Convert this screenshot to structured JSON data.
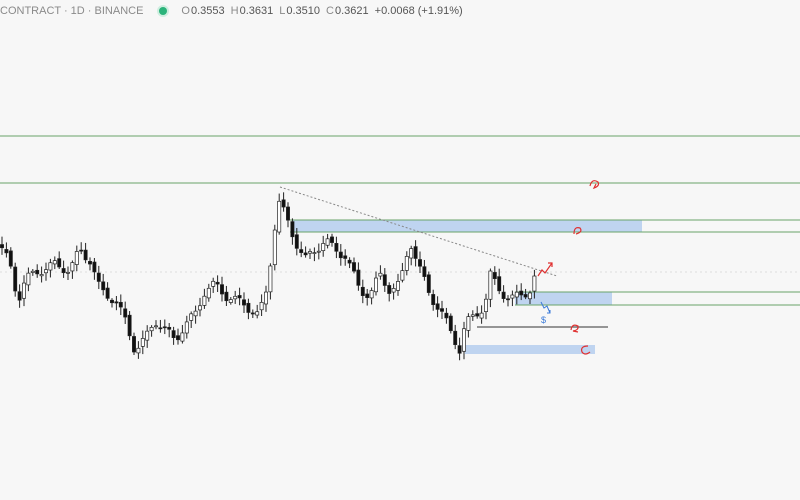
{
  "header": {
    "symbol": "CONTRACT · 1D · BINANCE",
    "ohlc": [
      {
        "label": "O",
        "value": "0.3553"
      },
      {
        "label": "H",
        "value": "0.3631"
      },
      {
        "label": "L",
        "value": "0.3510"
      },
      {
        "label": "C",
        "value": "0.3621"
      }
    ],
    "change": "+0.0068 (+1.91%)"
  },
  "annotations": [
    "$"
  ]
}
